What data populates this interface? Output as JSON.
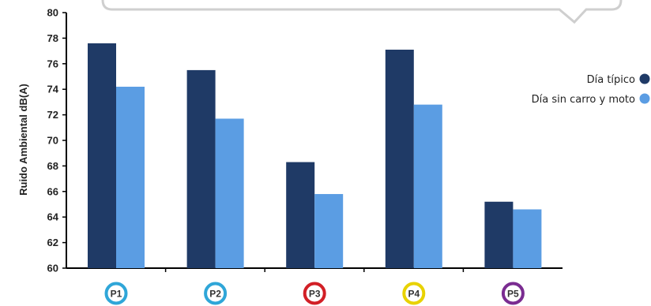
{
  "chart_data": {
    "type": "bar",
    "categories": [
      "P1",
      "P2",
      "P3",
      "P4",
      "P5"
    ],
    "category_badge_colors": [
      "#2fa6d8",
      "#2fa6d8",
      "#d21f26",
      "#e8d200",
      "#7a2c91"
    ],
    "series": [
      {
        "name": "Día típico",
        "color": "#1f3a66",
        "values": [
          77.6,
          75.5,
          68.3,
          77.1,
          65.2
        ]
      },
      {
        "name": "Día sin carro y moto",
        "color": "#5b9de3",
        "values": [
          74.2,
          71.7,
          65.8,
          72.8,
          64.6
        ]
      }
    ],
    "ylabel": "Ruido Ambiental dB(A)",
    "xlabel": "",
    "ylim": [
      60,
      80
    ],
    "yticks": [
      60,
      62,
      64,
      66,
      68,
      70,
      72,
      74,
      76,
      78,
      80
    ],
    "grid": false,
    "legend_position": "right"
  }
}
